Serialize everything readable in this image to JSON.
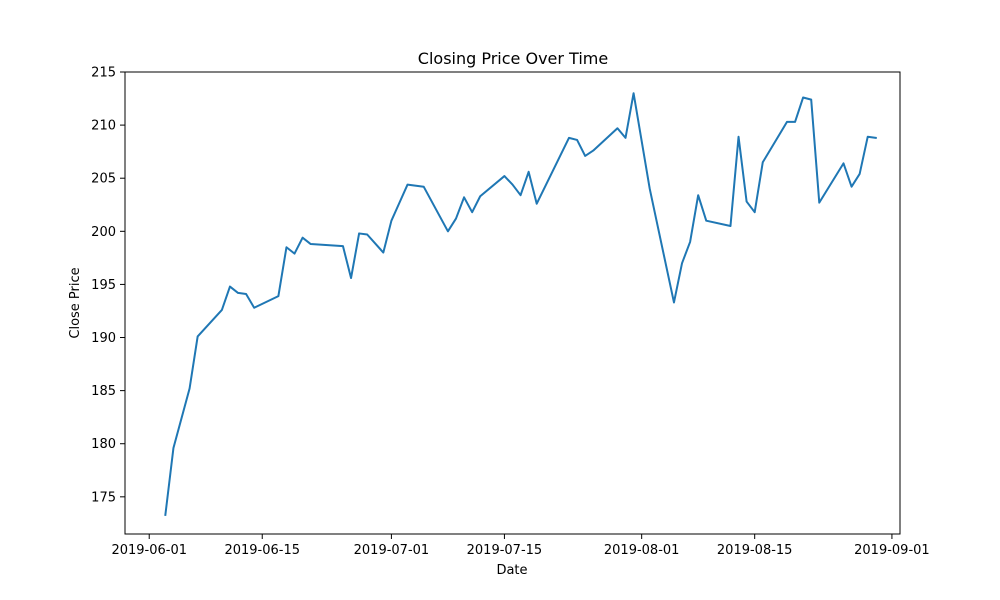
{
  "chart_data": {
    "type": "line",
    "title": "Closing Price Over Time",
    "xlabel": "Date",
    "ylabel": "Close Price",
    "xlim": [
      "2019-05-29",
      "2019-09-02"
    ],
    "ylim": [
      171.5,
      215
    ],
    "x_ticks": [
      "2019-06-01",
      "2019-06-15",
      "2019-07-01",
      "2019-07-15",
      "2019-08-01",
      "2019-08-15",
      "2019-09-01"
    ],
    "y_ticks": [
      175,
      180,
      185,
      190,
      195,
      200,
      205,
      210,
      215
    ],
    "grid": false,
    "series": [
      {
        "color": "#1f77b4",
        "x": [
          "2019-06-03",
          "2019-06-04",
          "2019-06-06",
          "2019-06-07",
          "2019-06-10",
          "2019-06-11",
          "2019-06-12",
          "2019-06-13",
          "2019-06-14",
          "2019-06-17",
          "2019-06-18",
          "2019-06-19",
          "2019-06-20",
          "2019-06-21",
          "2019-06-25",
          "2019-06-26",
          "2019-06-27",
          "2019-06-28",
          "2019-06-30",
          "2019-07-01",
          "2019-07-02",
          "2019-07-03",
          "2019-07-05",
          "2019-07-08",
          "2019-07-09",
          "2019-07-10",
          "2019-07-11",
          "2019-07-12",
          "2019-07-15",
          "2019-07-16",
          "2019-07-17",
          "2019-07-18",
          "2019-07-19",
          "2019-07-23",
          "2019-07-24",
          "2019-07-25",
          "2019-07-26",
          "2019-07-29",
          "2019-07-30",
          "2019-07-31",
          "2019-08-02",
          "2019-08-05",
          "2019-08-06",
          "2019-08-07",
          "2019-08-08",
          "2019-08-09",
          "2019-08-12",
          "2019-08-13",
          "2019-08-14",
          "2019-08-15",
          "2019-08-16",
          "2019-08-19",
          "2019-08-20",
          "2019-08-21",
          "2019-08-22",
          "2019-08-23",
          "2019-08-26",
          "2019-08-27",
          "2019-08-28",
          "2019-08-29",
          "2019-08-30"
        ],
        "y": [
          173.3,
          179.6,
          185.2,
          190.1,
          192.6,
          194.8,
          194.2,
          194.1,
          192.8,
          193.9,
          198.5,
          197.9,
          199.4,
          198.8,
          198.6,
          195.6,
          199.8,
          199.7,
          198.0,
          201.0,
          202.7,
          204.4,
          204.2,
          200.0,
          201.2,
          203.2,
          201.8,
          203.3,
          205.2,
          204.4,
          203.4,
          205.6,
          202.6,
          208.8,
          208.6,
          207.1,
          207.6,
          209.7,
          208.8,
          213.0,
          204.0,
          193.3,
          197.0,
          199.0,
          203.4,
          201.0,
          200.5,
          208.9,
          202.8,
          201.8,
          206.5,
          210.3,
          210.3,
          212.6,
          212.4,
          202.7,
          206.4,
          204.2,
          205.4,
          208.9,
          208.8
        ]
      }
    ]
  }
}
